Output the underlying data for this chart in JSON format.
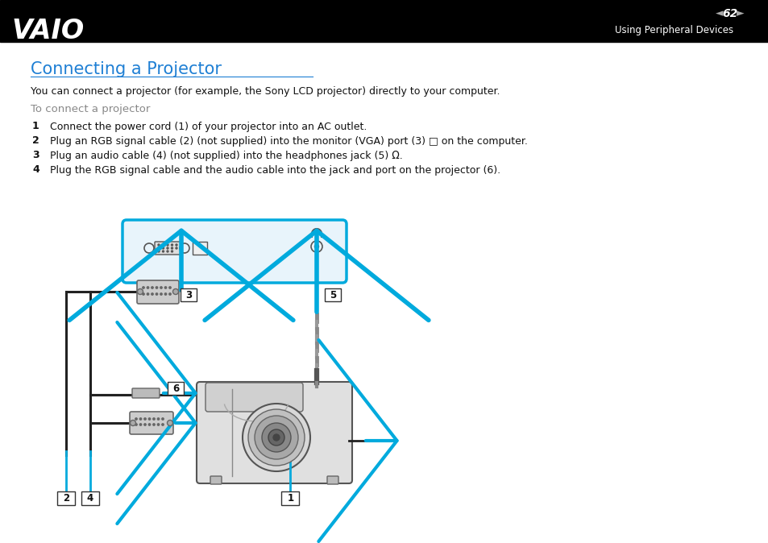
{
  "header_bg": "#000000",
  "header_text_color": "#ffffff",
  "page_num": "62",
  "section_title": "Using Peripheral Devices",
  "title": "Connecting a Projector",
  "title_color": "#1e7fd4",
  "body_text_color": "#111111",
  "subtitle_color": "#888888",
  "intro": "You can connect a projector (for example, the Sony LCD projector) directly to your computer.",
  "subsection": "To connect a projector",
  "steps": [
    "Connect the power cord (1) of your projector into an AC outlet.",
    "Plug an RGB signal cable (2) (not supplied) into the monitor (VGA) port (3) □ on the computer.",
    "Plug an audio cable (4) (not supplied) into the headphones jack (5) Ω.",
    "Plug the RGB signal cable and the audio cable into the jack and port on the projector (6)."
  ],
  "bg_color": "#ffffff",
  "arrow_color": "#00aadd",
  "line_color": "#222222"
}
